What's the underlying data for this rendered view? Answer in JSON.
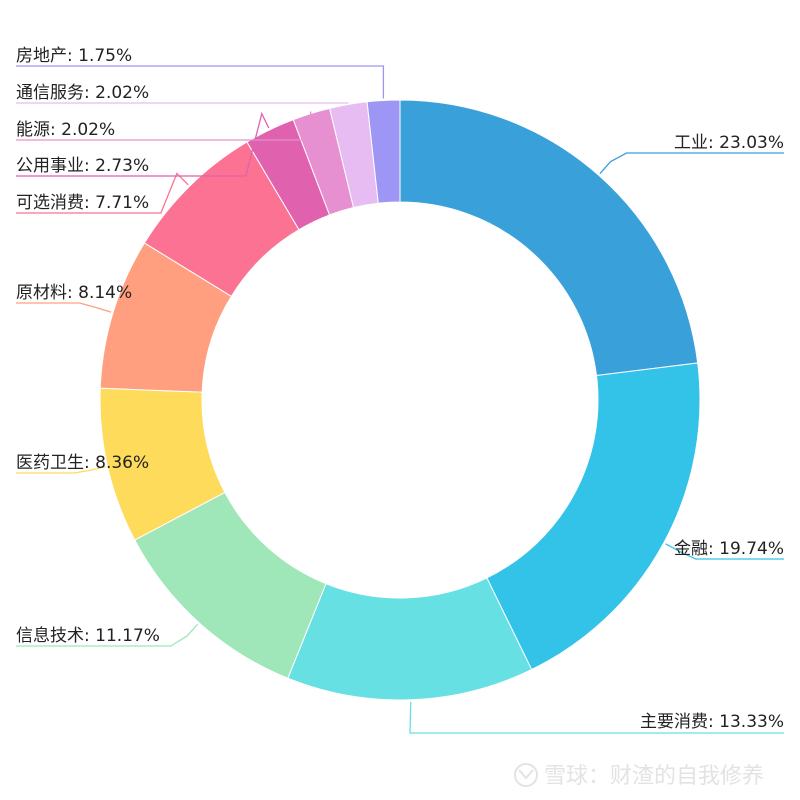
{
  "chart_data": {
    "type": "pie",
    "style": "donut",
    "slices": [
      {
        "name": "工业",
        "value": 23.03,
        "label": "工业: 23.03%",
        "color": "#3aa0da"
      },
      {
        "name": "金融",
        "value": 19.74,
        "label": "金融: 19.74%",
        "color": "#33c3e8"
      },
      {
        "name": "主要消费",
        "value": 13.33,
        "label": "主要消费: 13.33%",
        "color": "#66e0e3"
      },
      {
        "name": "信息技术",
        "value": 11.17,
        "label": "信息技术: 11.17%",
        "color": "#9fe6b8"
      },
      {
        "name": "医药卫生",
        "value": 8.36,
        "label": "医药卫生: 8.36%",
        "color": "#ffdb5c"
      },
      {
        "name": "原材料",
        "value": 8.14,
        "label": "原材料: 8.14%",
        "color": "#ff9f7f"
      },
      {
        "name": "可选消费",
        "value": 7.71,
        "label": "可选消费: 7.71%",
        "color": "#fb7293"
      },
      {
        "name": "公用事业",
        "value": 2.73,
        "label": "公用事业: 2.73%",
        "color": "#e062ae"
      },
      {
        "name": "能源",
        "value": 2.02,
        "label": "能源: 2.02%",
        "color": "#e690d1"
      },
      {
        "name": "通信服务",
        "value": 2.02,
        "label": "通信服务: 2.02%",
        "color": "#e7bcf3"
      },
      {
        "name": "房地产",
        "value": 1.75,
        "label": "房地产: 1.75%",
        "color": "#9d96f5"
      }
    ]
  },
  "watermark": {
    "text": "雪球：财渣的自我修养",
    "icon": "xueqiu-logo-icon"
  }
}
